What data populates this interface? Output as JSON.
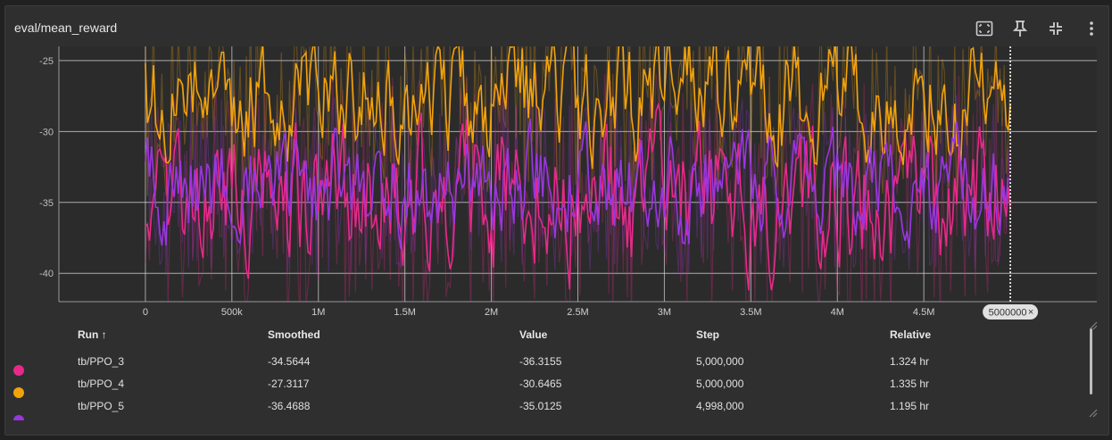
{
  "header": {
    "title": "eval/mean_reward"
  },
  "toolbar": {
    "icons": [
      "fit-domain-icon",
      "pin-icon",
      "collapse-icon",
      "more-vert-icon"
    ]
  },
  "chart_data": {
    "type": "line",
    "title": "eval/mean_reward",
    "xlabel": "",
    "ylabel": "",
    "x_ticks": [
      "0",
      "500k",
      "1M",
      "1.5M",
      "2M",
      "2.5M",
      "3M",
      "3.5M",
      "4M",
      "4.5M"
    ],
    "y_ticks": [
      "-25",
      "-30",
      "-35",
      "-40"
    ],
    "xlim": [
      -500000,
      5500000
    ],
    "ylim": [
      -42,
      -24
    ],
    "grid": true,
    "cursor_label": "5000000",
    "series": [
      {
        "name": "tb/PPO_3",
        "color": "#e8298a",
        "smoothed_mean": -34.6,
        "amplitude": 5.5,
        "seed": 3
      },
      {
        "name": "tb/PPO_4",
        "color": "#f2a20b",
        "smoothed_mean": -27.5,
        "amplitude": 4.5,
        "seed": 11
      },
      {
        "name": "tb/PPO_5",
        "color": "#9a36e0",
        "smoothed_mean": -33.8,
        "amplitude": 4.0,
        "seed": 23
      }
    ],
    "x_end": 5000000,
    "x_end_ppo5": 4998000
  },
  "table": {
    "headers": {
      "run": "Run ↑",
      "smoothed": "Smoothed",
      "value": "Value",
      "step": "Step",
      "relative": "Relative"
    },
    "rows": [
      {
        "color": "#e8298a",
        "run": "tb/PPO_3",
        "smoothed": "-34.5644",
        "value": "-36.3155",
        "step": "5,000,000",
        "relative": "1.324 hr"
      },
      {
        "color": "#f2a20b",
        "run": "tb/PPO_4",
        "smoothed": "-27.3117",
        "value": "-30.6465",
        "step": "5,000,000",
        "relative": "1.335 hr"
      },
      {
        "color": "#9a36e0",
        "run": "tb/PPO_5",
        "smoothed": "-36.4688",
        "value": "-35.0125",
        "step": "4,998,000",
        "relative": "1.195 hr"
      }
    ]
  }
}
